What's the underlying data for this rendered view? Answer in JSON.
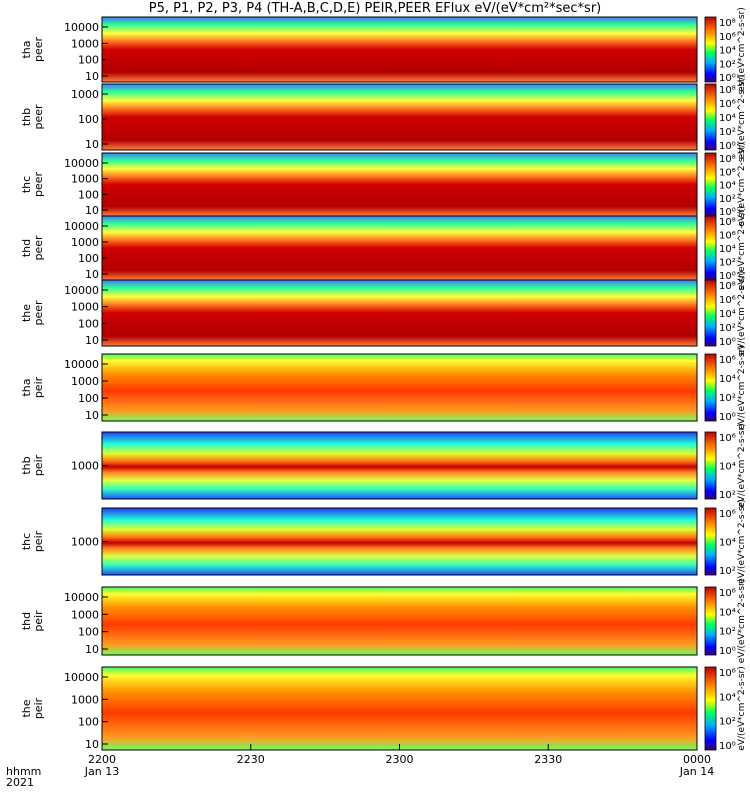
{
  "title": "P5, P1, P2, P3, P4 (TH-A,B,C,D,E) PEIR,PEER EFlux eV/(eV*cm²*sec*sr)",
  "chart_data": [
    {
      "type": "heatmap",
      "probe": "tha",
      "species": "peer",
      "ylabel": [
        "tha",
        "peer"
      ],
      "yticks": [
        "10000",
        "1000",
        "100",
        "10"
      ],
      "cbar_ticks": [
        "10⁸",
        "10⁶",
        "10⁴",
        "10²",
        "10⁰"
      ],
      "cbar_label": "eV/(eV*cm^2-s-sr)"
    },
    {
      "type": "heatmap",
      "probe": "thb",
      "species": "peer",
      "ylabel": [
        "thb",
        "peer"
      ],
      "yticks": [
        "1000",
        "100",
        "10"
      ],
      "cbar_ticks": [
        "10⁸",
        "10⁶",
        "10⁴",
        "10²",
        "10⁰"
      ],
      "cbar_label": "eV/(eV*cm^2-s-sr)"
    },
    {
      "type": "heatmap",
      "probe": "thc",
      "species": "peer",
      "ylabel": [
        "thc",
        "peer"
      ],
      "yticks": [
        "10000",
        "1000",
        "100",
        "10"
      ],
      "cbar_ticks": [
        "10⁸",
        "10⁶",
        "10⁴",
        "10²",
        "10⁰"
      ],
      "cbar_label": "eV/(eV*cm^2-s-sr)"
    },
    {
      "type": "heatmap",
      "probe": "thd",
      "species": "peer",
      "ylabel": [
        "thd",
        "peer"
      ],
      "yticks": [
        "10000",
        "1000",
        "100",
        "10"
      ],
      "cbar_ticks": [
        "10⁸",
        "10⁶",
        "10⁴",
        "10²",
        "10⁰"
      ],
      "cbar_label": "eV/(eV*cm^2-s-sr)"
    },
    {
      "type": "heatmap",
      "probe": "the",
      "species": "peer",
      "ylabel": [
        "the",
        "peer"
      ],
      "yticks": [
        "10000",
        "1000",
        "100",
        "10"
      ],
      "cbar_ticks": [
        "10⁸",
        "10⁶",
        "10⁴",
        "10²",
        "10⁰"
      ],
      "cbar_label": "eV/(eV*cm^2-s-sr)"
    },
    {
      "type": "heatmap",
      "probe": "tha",
      "species": "peir",
      "ylabel": [
        "tha",
        "peir"
      ],
      "yticks": [
        "10000",
        "1000",
        "100",
        "10"
      ],
      "cbar_ticks": [
        "10⁶",
        "10⁴",
        "10²",
        "10⁰"
      ],
      "cbar_label": "eV/(eV*cm^2-s-sr)"
    },
    {
      "type": "heatmap",
      "probe": "thb",
      "species": "peir",
      "ylabel": [
        "thb",
        "peir"
      ],
      "yticks": [
        "1000"
      ],
      "cbar_ticks": [
        "10⁶",
        "10⁴",
        "10²"
      ],
      "cbar_label": "eV/(eV*cm^2-s-sr)"
    },
    {
      "type": "heatmap",
      "probe": "thc",
      "species": "peir",
      "ylabel": [
        "thc",
        "peir"
      ],
      "yticks": [
        "1000"
      ],
      "cbar_ticks": [
        "10⁶",
        "10⁴",
        "10²"
      ],
      "cbar_label": "eV/(eV*cm^2-s-sr)"
    },
    {
      "type": "heatmap",
      "probe": "thd",
      "species": "peir",
      "ylabel": [
        "thd",
        "peir"
      ],
      "yticks": [
        "10000",
        "1000",
        "100",
        "10"
      ],
      "cbar_ticks": [
        "10⁶",
        "10⁴",
        "10²",
        "10⁰"
      ],
      "cbar_label": "eV/(eV*cm^2-s-sr)"
    },
    {
      "type": "heatmap",
      "probe": "the",
      "species": "peir",
      "ylabel": [
        "the",
        "peir"
      ],
      "yticks": [
        "10000",
        "1000",
        "100",
        "10"
      ],
      "cbar_ticks": [
        "10⁶",
        "10⁴",
        "10²",
        "10⁰"
      ],
      "cbar_label": "eV/(eV*cm^2-s-sr)"
    }
  ],
  "xaxis": {
    "ticks": [
      {
        "hhmm": "2200",
        "date": "Jan 13"
      },
      {
        "hhmm": "2230",
        "date": ""
      },
      {
        "hhmm": "2300",
        "date": ""
      },
      {
        "hhmm": "2330",
        "date": ""
      },
      {
        "hhmm": "0000",
        "date": "Jan 14"
      }
    ],
    "row_label_1": "hhmm",
    "row_label_2": "2021"
  },
  "colors": {
    "high": "#b00000",
    "mid": "#ffff00",
    "low": "#2060ff",
    "bg": "#ffffff"
  }
}
